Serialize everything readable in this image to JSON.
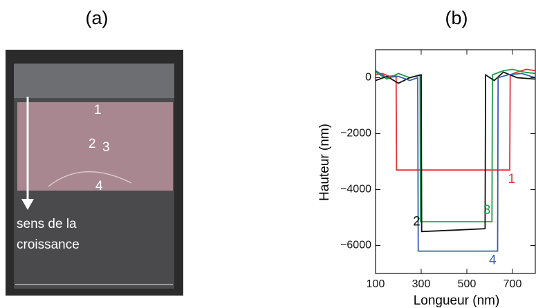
{
  "panel_labels": [
    "(a)",
    "(b)"
  ],
  "photo": {
    "annotations": [
      "1",
      "2",
      "3",
      "4"
    ],
    "arrow_label": [
      "sens de la",
      "croissance"
    ]
  },
  "chart_data": {
    "type": "line",
    "x_label": "Longueur (nm)",
    "y_label": "Hauteur (nm)",
    "xlim": [
      100,
      800
    ],
    "ylim": [
      -7000,
      1000
    ],
    "xticks": [
      100,
      300,
      500,
      700
    ],
    "yticks": [
      0,
      {
        "value": -2000,
        "label": "−2000"
      },
      {
        "value": -4000,
        "label": "−4000"
      },
      {
        "value": -6000,
        "label": "−6000"
      }
    ],
    "series": [
      {
        "name": "1",
        "color": "#e8302a",
        "x": [
          100,
          130,
          160,
          190,
          192,
          400,
          688,
          690,
          720,
          760,
          800
        ],
        "values": [
          100,
          150,
          50,
          80,
          -3300,
          -3300,
          -3300,
          100,
          200,
          300,
          250
        ]
      },
      {
        "name": "3",
        "color": "#1e9e4a",
        "x": [
          100,
          150,
          200,
          250,
          295,
          297,
          450,
          610,
          612,
          660,
          700,
          750,
          800
        ],
        "values": [
          200,
          -50,
          150,
          0,
          100,
          -5150,
          -5150,
          -5150,
          100,
          250,
          300,
          200,
          150
        ]
      },
      {
        "name": "2",
        "color": "#111111",
        "x": [
          100,
          150,
          200,
          250,
          300,
          302,
          450,
          580,
          582,
          620,
          660,
          720,
          800
        ],
        "values": [
          -100,
          50,
          -200,
          0,
          100,
          -5500,
          -5450,
          -5400,
          100,
          -100,
          200,
          0,
          -50
        ]
      },
      {
        "name": "4",
        "color": "#3a5db0",
        "x": [
          100,
          150,
          200,
          250,
          285,
          287,
          450,
          635,
          637,
          680,
          740,
          800
        ],
        "values": [
          250,
          0,
          50,
          -100,
          0,
          -6200,
          -6200,
          -6200,
          0,
          100,
          150,
          0
        ]
      }
    ]
  }
}
